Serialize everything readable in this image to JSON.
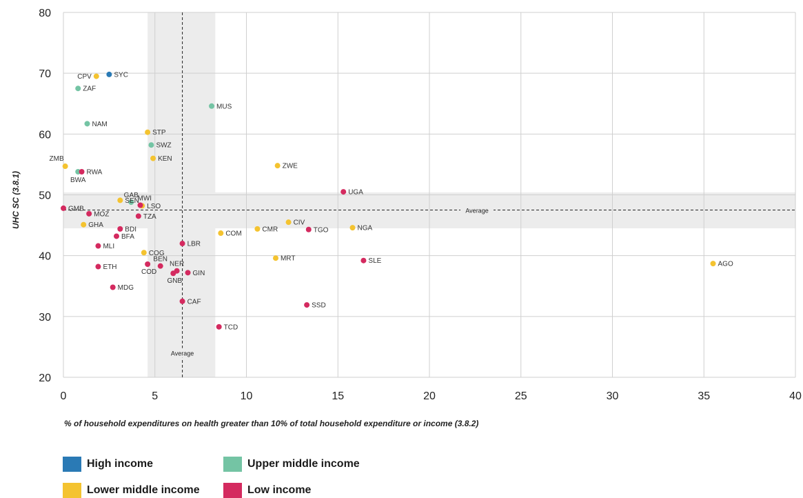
{
  "chart_data": {
    "type": "scatter",
    "xlabel": "% of household expenditures on health greater than 10% of total household expenditure or income (3.8.2)",
    "ylabel": "UHC SC (3.8.1)",
    "xlim": [
      0,
      40
    ],
    "ylim": [
      20,
      80
    ],
    "xticks": [
      "0",
      "5",
      "10",
      "15",
      "20",
      "25",
      "30",
      "35",
      "40"
    ],
    "yticks": [
      "20",
      "30",
      "40",
      "50",
      "60",
      "70",
      "80"
    ],
    "grid": true,
    "averages": {
      "x": {
        "value": 6.5,
        "label": "Average",
        "band": [
          4.6,
          8.3
        ]
      },
      "y": {
        "value": 47.5,
        "label": "Average",
        "band": [
          44.5,
          50.4
        ]
      }
    },
    "legend_position": "bottom-left",
    "series": [
      {
        "name": "High income",
        "color": "#2a7ab5",
        "points": [
          {
            "label": "SYC",
            "x": 2.5,
            "y": 69.8
          }
        ]
      },
      {
        "name": "Upper middle income",
        "color": "#74c4a4",
        "points": [
          {
            "label": "ZAF",
            "x": 0.8,
            "y": 67.5
          },
          {
            "label": "MUS",
            "x": 8.1,
            "y": 64.6
          },
          {
            "label": "NAM",
            "x": 1.3,
            "y": 61.7
          },
          {
            "label": "SWZ",
            "x": 4.8,
            "y": 58.2
          },
          {
            "label": "BWA",
            "x": 0.8,
            "y": 53.8
          },
          {
            "label": "GAB",
            "x": 3.7,
            "y": 48.8
          }
        ]
      },
      {
        "name": "Lower middle income",
        "color": "#f4c330",
        "points": [
          {
            "label": "CPV",
            "x": 1.8,
            "y": 69.5
          },
          {
            "label": "STP",
            "x": 4.6,
            "y": 60.3
          },
          {
            "label": "KEN",
            "x": 4.9,
            "y": 56.0
          },
          {
            "label": "ZMB",
            "x": 0.1,
            "y": 54.7
          },
          {
            "label": "ZWE",
            "x": 11.7,
            "y": 54.8
          },
          {
            "label": "SEN",
            "x": 3.1,
            "y": 49.1
          },
          {
            "label": "LSO",
            "x": 4.3,
            "y": 48.2
          },
          {
            "label": "GHA",
            "x": 1.1,
            "y": 45.1
          },
          {
            "label": "CIV",
            "x": 12.3,
            "y": 45.5
          },
          {
            "label": "NGA",
            "x": 15.8,
            "y": 44.6
          },
          {
            "label": "CMR",
            "x": 10.6,
            "y": 44.4
          },
          {
            "label": "COM",
            "x": 8.6,
            "y": 43.7
          },
          {
            "label": "COG",
            "x": 4.4,
            "y": 40.5
          },
          {
            "label": "MRT",
            "x": 11.6,
            "y": 39.6
          },
          {
            "label": "AGO",
            "x": 35.5,
            "y": 38.7
          }
        ]
      },
      {
        "name": "Low income",
        "color": "#d42a5f",
        "points": [
          {
            "label": "RWA",
            "x": 1.0,
            "y": 53.8
          },
          {
            "label": "UGA",
            "x": 15.3,
            "y": 50.5
          },
          {
            "label": "MWI",
            "x": 4.2,
            "y": 48.3
          },
          {
            "label": "GMB",
            "x": 0.0,
            "y": 47.8
          },
          {
            "label": "MOZ",
            "x": 1.4,
            "y": 46.9
          },
          {
            "label": "TZA",
            "x": 4.1,
            "y": 46.5
          },
          {
            "label": "BDI",
            "x": 3.1,
            "y": 44.4
          },
          {
            "label": "TGO",
            "x": 13.4,
            "y": 44.3
          },
          {
            "label": "BFA",
            "x": 2.9,
            "y": 43.2
          },
          {
            "label": "LBR",
            "x": 6.5,
            "y": 42.0
          },
          {
            "label": "MLI",
            "x": 1.9,
            "y": 41.6
          },
          {
            "label": "SLE",
            "x": 16.4,
            "y": 39.2
          },
          {
            "label": "BEN",
            "x": 5.3,
            "y": 38.3
          },
          {
            "label": "COD",
            "x": 4.6,
            "y": 38.6
          },
          {
            "label": "ETH",
            "x": 1.9,
            "y": 38.2
          },
          {
            "label": "NER",
            "x": 6.2,
            "y": 37.5
          },
          {
            "label": "GNB",
            "x": 6.0,
            "y": 37.1
          },
          {
            "label": "GIN",
            "x": 6.8,
            "y": 37.2
          },
          {
            "label": "MDG",
            "x": 2.7,
            "y": 34.8
          },
          {
            "label": "CAF",
            "x": 6.5,
            "y": 32.5
          },
          {
            "label": "SSD",
            "x": 13.3,
            "y": 31.9
          },
          {
            "label": "TCD",
            "x": 8.5,
            "y": 28.3
          }
        ]
      }
    ]
  }
}
